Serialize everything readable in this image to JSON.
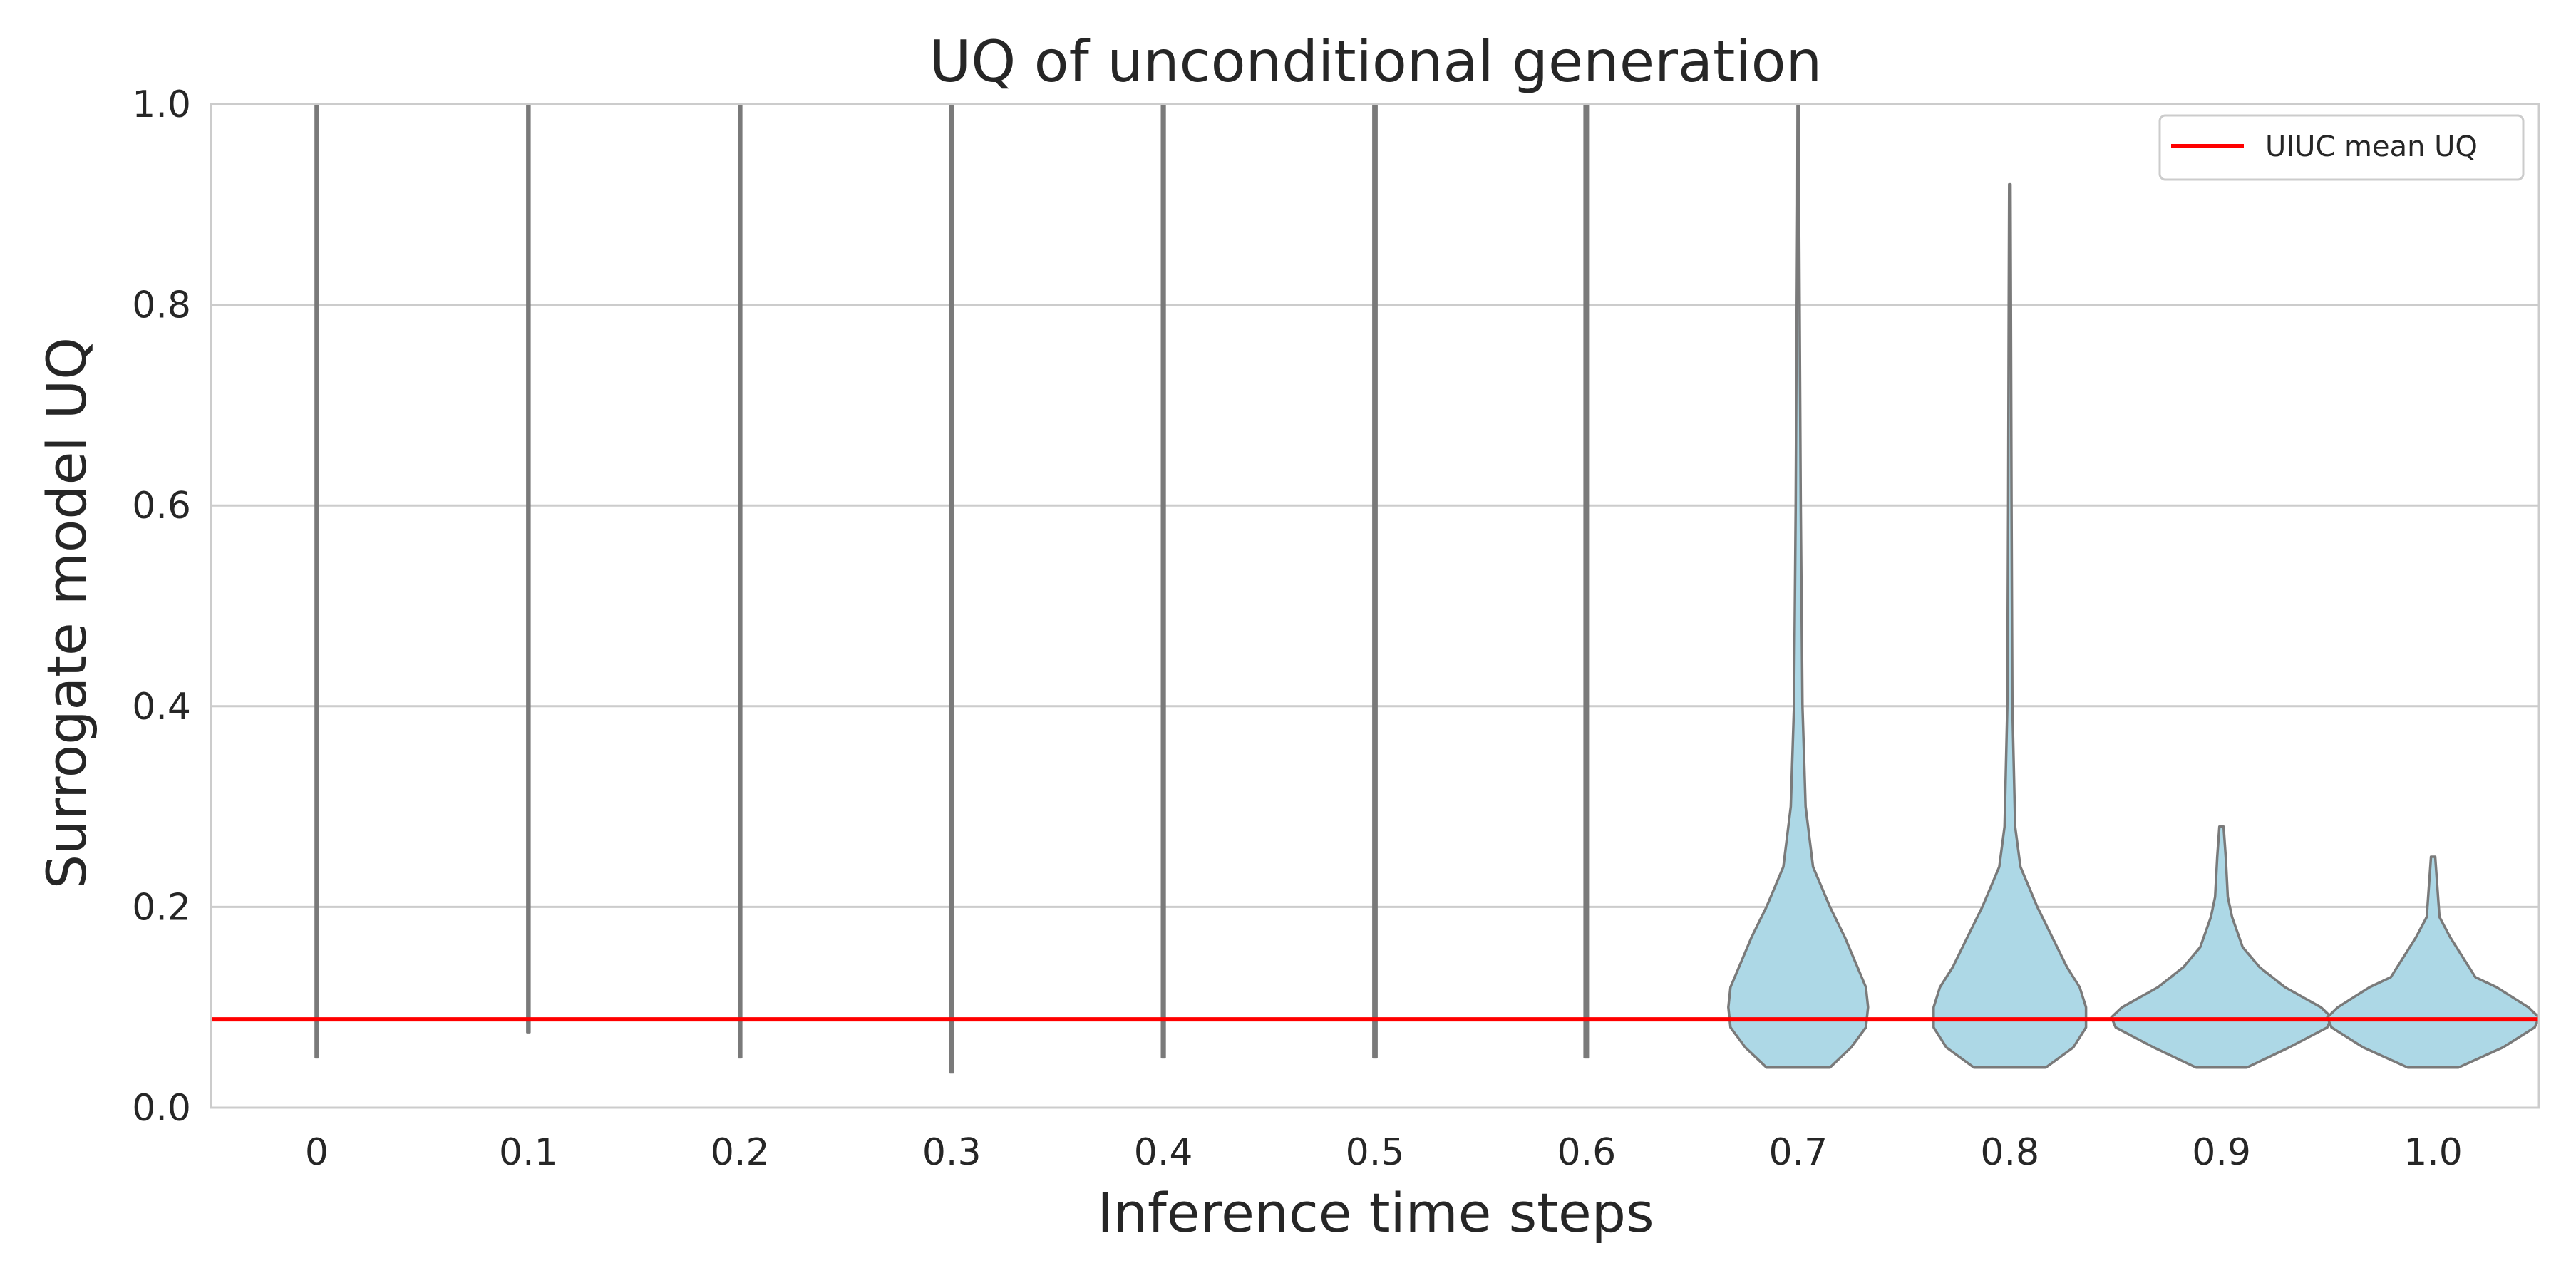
{
  "chart_data": {
    "type": "violin",
    "title": "UQ of unconditional generation",
    "xlabel": "Inference time steps",
    "ylabel": "Surrogate model UQ",
    "ylim": [
      0.0,
      1.0
    ],
    "yticks": [
      "0.0",
      "0.2",
      "0.4",
      "0.6",
      "0.8",
      "1.0"
    ],
    "grid": true,
    "legend_position": "top-right",
    "categories": [
      "0",
      "0.1",
      "0.2",
      "0.3",
      "0.4",
      "0.5",
      "0.6",
      "0.7",
      "0.8",
      "0.9",
      "1.0"
    ],
    "violins": [
      {
        "min": 0.05,
        "max": 1.0,
        "max_half_width": 0.006
      },
      {
        "min": 0.075,
        "max": 1.0,
        "max_half_width": 0.006
      },
      {
        "min": 0.05,
        "max": 1.0,
        "max_half_width": 0.006
      },
      {
        "min": 0.035,
        "max": 1.0,
        "max_half_width": 0.007
      },
      {
        "min": 0.05,
        "max": 1.0,
        "max_half_width": 0.007
      },
      {
        "min": 0.05,
        "max": 1.0,
        "max_half_width": 0.008
      },
      {
        "min": 0.05,
        "max": 1.0,
        "max_half_width": 0.01
      },
      {
        "min": 0.04,
        "max": 1.0,
        "profile": [
          [
            0.04,
            0.15
          ],
          [
            0.06,
            0.25
          ],
          [
            0.08,
            0.32
          ],
          [
            0.1,
            0.33
          ],
          [
            0.12,
            0.32
          ],
          [
            0.14,
            0.28
          ],
          [
            0.17,
            0.22
          ],
          [
            0.2,
            0.15
          ],
          [
            0.24,
            0.07
          ],
          [
            0.3,
            0.035
          ],
          [
            0.4,
            0.02
          ],
          [
            0.6,
            0.012
          ],
          [
            0.75,
            0.008
          ],
          [
            0.9,
            0.004
          ],
          [
            1.0,
            0.003
          ]
        ]
      },
      {
        "min": 0.04,
        "max": 0.92,
        "profile": [
          [
            0.04,
            0.17
          ],
          [
            0.06,
            0.3
          ],
          [
            0.08,
            0.36
          ],
          [
            0.1,
            0.36
          ],
          [
            0.12,
            0.33
          ],
          [
            0.14,
            0.27
          ],
          [
            0.17,
            0.2
          ],
          [
            0.2,
            0.13
          ],
          [
            0.24,
            0.05
          ],
          [
            0.28,
            0.025
          ],
          [
            0.4,
            0.012
          ],
          [
            0.6,
            0.008
          ],
          [
            0.8,
            0.005
          ],
          [
            0.92,
            0.003
          ]
        ]
      },
      {
        "min": 0.04,
        "max": 0.28,
        "profile": [
          [
            0.04,
            0.12
          ],
          [
            0.06,
            0.32
          ],
          [
            0.08,
            0.5
          ],
          [
            0.09,
            0.52
          ],
          [
            0.1,
            0.47
          ],
          [
            0.12,
            0.3
          ],
          [
            0.14,
            0.18
          ],
          [
            0.16,
            0.1
          ],
          [
            0.19,
            0.05
          ],
          [
            0.21,
            0.03
          ],
          [
            0.25,
            0.02
          ],
          [
            0.28,
            0.01
          ]
        ]
      },
      {
        "min": 0.04,
        "max": 0.25,
        "profile": [
          [
            0.04,
            0.12
          ],
          [
            0.06,
            0.33
          ],
          [
            0.08,
            0.48
          ],
          [
            0.09,
            0.5
          ],
          [
            0.1,
            0.45
          ],
          [
            0.12,
            0.3
          ],
          [
            0.13,
            0.2
          ],
          [
            0.15,
            0.14
          ],
          [
            0.17,
            0.08
          ],
          [
            0.19,
            0.03
          ],
          [
            0.22,
            0.02
          ],
          [
            0.25,
            0.01
          ]
        ]
      }
    ],
    "reference_line": {
      "label": "UIUC mean UQ",
      "y": 0.088,
      "color": "#ff0000"
    },
    "colors": {
      "violin_fill": "#add8e6",
      "violin_edge": "#7a7a7a",
      "grid": "#cccccc",
      "spine": "#cccccc"
    }
  }
}
